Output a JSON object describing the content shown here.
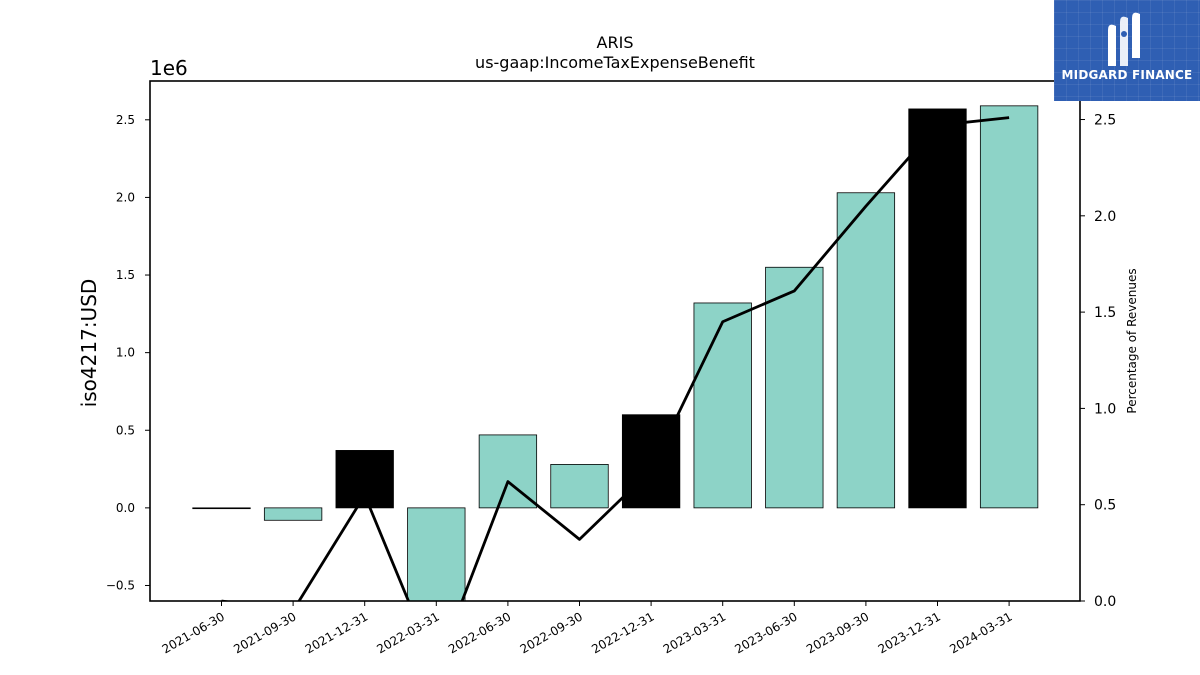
{
  "chart_data": {
    "type": "bar",
    "title": "ARIS",
    "subtitle": "us-gaap:IncomeTaxExpenseBenefit",
    "ylabel": "iso4217:USD",
    "y_offset_label": "1e6",
    "y2label": "Percentage of Revenues",
    "ylim": [
      -0.6,
      2.75
    ],
    "y2lim": [
      0.0,
      2.7
    ],
    "yticks": [
      "−0.5",
      "0.0",
      "0.5",
      "1.0",
      "1.5",
      "2.0",
      "2.5"
    ],
    "y2ticks": [
      "0.0",
      "0.5",
      "1.0",
      "1.5",
      "2.0",
      "2.5"
    ],
    "categories": [
      "2021-06-30",
      "2021-09-30",
      "2021-12-31",
      "2022-03-31",
      "2022-06-30",
      "2022-09-30",
      "2022-12-31",
      "2023-03-31",
      "2023-06-30",
      "2023-09-30",
      "2023-12-31",
      "2024-03-31"
    ],
    "series": [
      {
        "kind": "bar",
        "values": [
          0.0,
          -0.08,
          0.37,
          -0.62,
          0.47,
          0.28,
          0.6,
          1.32,
          1.55,
          2.03,
          2.57,
          2.59
        ],
        "colors": [
          "#8dd3c7",
          "#8dd3c7",
          "#000000",
          "#8dd3c7",
          "#8dd3c7",
          "#8dd3c7",
          "#000000",
          "#8dd3c7",
          "#8dd3c7",
          "#8dd3c7",
          "#000000",
          "#8dd3c7"
        ]
      },
      {
        "kind": "line",
        "axis": "right",
        "color": "#000000",
        "values": [
          0.0,
          -0.05,
          0.55,
          -0.35,
          0.62,
          0.32,
          0.68,
          1.45,
          1.61,
          2.05,
          2.47,
          2.51
        ]
      }
    ],
    "grid": false
  },
  "logo": {
    "text": "MIDGARD FINANCE",
    "background": "#2f5fb3"
  }
}
